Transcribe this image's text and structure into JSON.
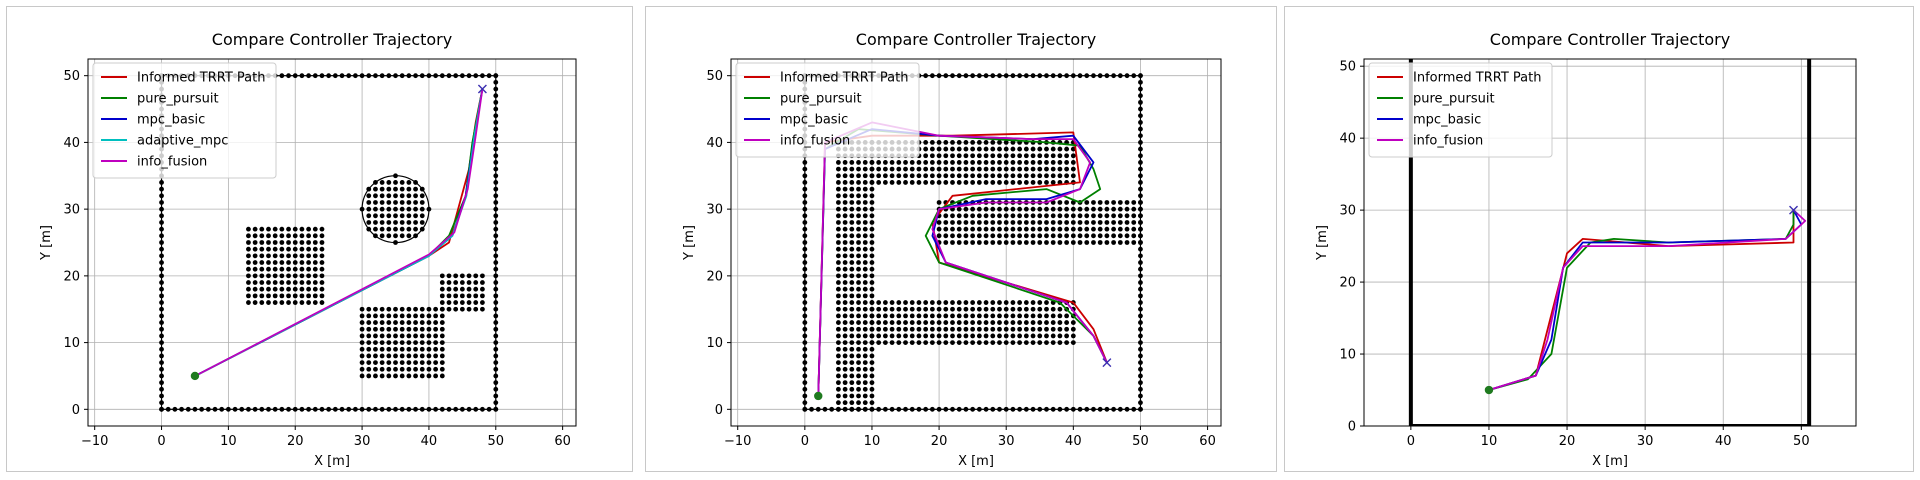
{
  "chart_data": [
    {
      "type": "line",
      "title": "Compare Controller Trajectory",
      "xlabel": "X [m]",
      "ylabel": "Y [m]",
      "xlim": [
        -11,
        62
      ],
      "ylim": [
        -2.5,
        52.5
      ],
      "xticks": [
        -10,
        0,
        10,
        20,
        30,
        40,
        50,
        60
      ],
      "yticks": [
        0,
        10,
        20,
        30,
        40,
        50
      ],
      "grid": true,
      "legend": "upper-left",
      "start": [
        5,
        5
      ],
      "goal": [
        48,
        48
      ],
      "obstacles": {
        "rects": [
          [
            0,
            0,
            50,
            50
          ]
        ],
        "filled_rects": [
          [
            13,
            16,
            24,
            27
          ],
          [
            30,
            5,
            42,
            15
          ],
          [
            42,
            15,
            48,
            20
          ]
        ],
        "circles": [
          [
            35,
            30,
            5
          ]
        ]
      },
      "series": [
        {
          "name": "Informed TRRT Path",
          "color": "#cc0000",
          "points": [
            [
              5,
              5
            ],
            [
              40,
              23
            ],
            [
              43,
              25
            ],
            [
              46,
              36
            ],
            [
              47,
              43
            ],
            [
              48,
              48
            ]
          ]
        },
        {
          "name": "pure_pursuit",
          "color": "#008000",
          "points": [
            [
              5,
              5
            ],
            [
              40,
              23
            ],
            [
              43,
              26
            ],
            [
              45.5,
              32
            ],
            [
              46.5,
              40
            ],
            [
              48,
              48
            ]
          ]
        },
        {
          "name": "mpc_basic",
          "color": "#0000cc",
          "points": [
            [
              5,
              5
            ],
            [
              40,
              23
            ],
            [
              43.5,
              26
            ],
            [
              45.5,
              32
            ],
            [
              46.8,
              41
            ],
            [
              48,
              48
            ]
          ]
        },
        {
          "name": "adaptive_mpc",
          "color": "#00bfbf",
          "points": [
            [
              5,
              5
            ],
            [
              40,
              23
            ],
            [
              43.5,
              26
            ],
            [
              45.6,
              32
            ],
            [
              46.8,
              41
            ],
            [
              48,
              48
            ]
          ]
        },
        {
          "name": "info_fusion",
          "color": "#bf00bf",
          "points": [
            [
              5,
              5
            ],
            [
              40,
              23.2
            ],
            [
              43.8,
              26.5
            ],
            [
              45.8,
              33
            ],
            [
              47,
              41
            ],
            [
              48,
              48
            ]
          ]
        }
      ]
    },
    {
      "type": "line",
      "title": "Compare Controller Trajectory",
      "xlabel": "X [m]",
      "ylabel": "Y [m]",
      "xlim": [
        -11,
        62
      ],
      "ylim": [
        -2.5,
        52.5
      ],
      "xticks": [
        -10,
        0,
        10,
        20,
        30,
        40,
        50,
        60
      ],
      "yticks": [
        0,
        10,
        20,
        30,
        40,
        50
      ],
      "grid": true,
      "legend": "upper-left",
      "start": [
        2,
        2
      ],
      "goal": [
        45,
        7
      ],
      "obstacles": {
        "rects": [
          [
            0,
            0,
            50,
            50
          ]
        ],
        "filled_rects": [
          [
            5,
            0,
            10,
            40
          ],
          [
            10,
            34,
            40,
            40
          ],
          [
            20,
            25,
            50,
            31
          ],
          [
            10,
            10,
            40,
            16
          ]
        ],
        "circles": []
      },
      "series": [
        {
          "name": "Informed TRRT Path",
          "color": "#cc0000",
          "points": [
            [
              2,
              2
            ],
            [
              3,
              40
            ],
            [
              10,
              41
            ],
            [
              22,
              41
            ],
            [
              40,
              41.5
            ],
            [
              41,
              34
            ],
            [
              22,
              32
            ],
            [
              19,
              28
            ],
            [
              20,
              22
            ],
            [
              40,
              16
            ],
            [
              43,
              12
            ],
            [
              45,
              7
            ]
          ]
        },
        {
          "name": "pure_pursuit",
          "color": "#008000",
          "points": [
            [
              2,
              2
            ],
            [
              3,
              39
            ],
            [
              8,
              42
            ],
            [
              20,
              41
            ],
            [
              36,
              40
            ],
            [
              41,
              39.5
            ],
            [
              43,
              36
            ],
            [
              44,
              33
            ],
            [
              41,
              31
            ],
            [
              36,
              33
            ],
            [
              25,
              32
            ],
            [
              20,
              30
            ],
            [
              18,
              26
            ],
            [
              20,
              22
            ],
            [
              38,
              16
            ],
            [
              43,
              11
            ],
            [
              45,
              7
            ]
          ]
        },
        {
          "name": "mpc_basic",
          "color": "#0000cc",
          "points": [
            [
              2,
              2
            ],
            [
              3,
              39
            ],
            [
              10,
              42
            ],
            [
              20,
              41
            ],
            [
              34,
              40.5
            ],
            [
              40,
              41
            ],
            [
              43,
              37
            ],
            [
              41,
              33
            ],
            [
              36,
              31.5
            ],
            [
              27,
              31.5
            ],
            [
              20,
              30
            ],
            [
              19,
              26
            ],
            [
              21,
              22
            ],
            [
              39,
              16
            ],
            [
              43,
              11
            ],
            [
              45,
              7
            ]
          ]
        },
        {
          "name": "info_fusion",
          "color": "#bf00bf",
          "points": [
            [
              2,
              2
            ],
            [
              3,
              40
            ],
            [
              10,
              43
            ],
            [
              20,
              41
            ],
            [
              34,
              40.5
            ],
            [
              40,
              40.5
            ],
            [
              42.5,
              37
            ],
            [
              41,
              33
            ],
            [
              36,
              31
            ],
            [
              27,
              31
            ],
            [
              20,
              30
            ],
            [
              19,
              27
            ],
            [
              21,
              22
            ],
            [
              39,
              16
            ],
            [
              43,
              11
            ],
            [
              45,
              7
            ]
          ]
        }
      ]
    },
    {
      "type": "line",
      "title": "Compare Controller Trajectory",
      "xlabel": "X [m]",
      "ylabel": "Y [m]",
      "xlim": [
        -6,
        57
      ],
      "ylim": [
        0,
        51
      ],
      "xticks": [
        0,
        10,
        20,
        30,
        40,
        50
      ],
      "yticks": [
        0,
        10,
        20,
        30,
        40,
        50
      ],
      "grid": true,
      "legend": "upper-left",
      "start": [
        10,
        5
      ],
      "goal": [
        49,
        30
      ],
      "obstacles": {
        "rects": [],
        "filled_rects": [],
        "circles": [],
        "walls": [
          [
            0,
            0,
            0,
            51
          ],
          [
            51,
            0,
            51,
            51
          ]
        ]
      },
      "series": [
        {
          "name": "Informed TRRT Path",
          "color": "#cc0000",
          "points": [
            [
              10,
              5
            ],
            [
              16,
              7
            ],
            [
              20,
              24
            ],
            [
              22,
              26
            ],
            [
              33,
              25
            ],
            [
              49,
              25.5
            ],
            [
              49,
              30
            ]
          ]
        },
        {
          "name": "pure_pursuit",
          "color": "#008000",
          "points": [
            [
              10,
              5
            ],
            [
              15,
              6.5
            ],
            [
              18,
              10
            ],
            [
              20,
              22
            ],
            [
              23,
              25.5
            ],
            [
              26,
              26
            ],
            [
              33,
              25.5
            ],
            [
              48,
              26
            ],
            [
              49,
              28
            ],
            [
              49,
              30
            ]
          ]
        },
        {
          "name": "mpc_basic",
          "color": "#0000cc",
          "points": [
            [
              10,
              5
            ],
            [
              16,
              7
            ],
            [
              18,
              12
            ],
            [
              19.5,
              22
            ],
            [
              22,
              25.5
            ],
            [
              33,
              25.5
            ],
            [
              48,
              26
            ],
            [
              50,
              28
            ],
            [
              49,
              30
            ]
          ]
        },
        {
          "name": "info_fusion",
          "color": "#bf00bf",
          "points": [
            [
              10,
              5
            ],
            [
              16,
              7
            ],
            [
              17.5,
              12
            ],
            [
              19.5,
              22
            ],
            [
              22,
              25
            ],
            [
              33,
              25
            ],
            [
              48,
              26
            ],
            [
              50.5,
              28.5
            ],
            [
              49,
              30
            ]
          ]
        }
      ]
    }
  ]
}
